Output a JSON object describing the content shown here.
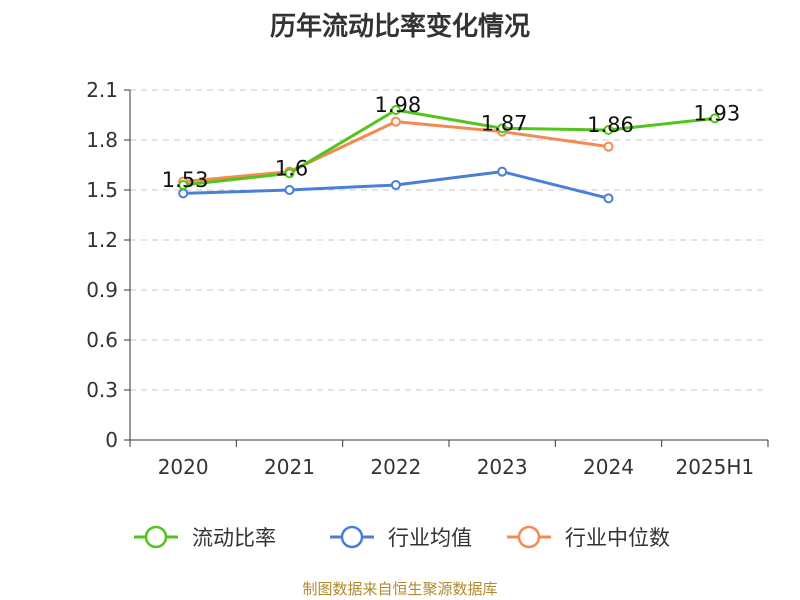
{
  "chart_data": {
    "type": "line",
    "title": "历年流动比率变化情况",
    "categories": [
      "2020",
      "2021",
      "2022",
      "2023",
      "2024",
      "2025H1"
    ],
    "ylim": [
      0,
      2.1
    ],
    "yticks": [
      "0",
      "0.3",
      "0.6",
      "0.9",
      "1.2",
      "1.5",
      "1.8",
      "2.1"
    ],
    "grid": true,
    "legend_position": "bottom",
    "series": [
      {
        "name": "流动比率",
        "color": "#52c41a",
        "values": [
          1.53,
          1.6,
          1.98,
          1.87,
          1.86,
          1.93
        ],
        "labels": [
          "1.53",
          "1.6",
          "1.98",
          "1.87",
          "1.86",
          "1.93"
        ]
      },
      {
        "name": "行业均值",
        "color": "#4a7fd8",
        "values": [
          1.48,
          1.5,
          1.53,
          1.61,
          1.45,
          null
        ]
      },
      {
        "name": "行业中位数",
        "color": "#f48a52",
        "values": [
          1.55,
          1.61,
          1.91,
          1.85,
          1.76,
          null
        ]
      }
    ]
  },
  "source": "制图数据来自恒生聚源数据库"
}
